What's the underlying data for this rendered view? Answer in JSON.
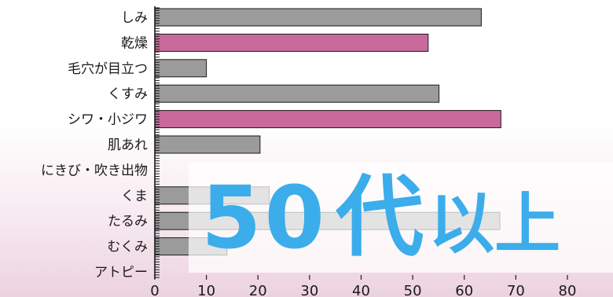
{
  "chart_data": {
    "type": "bar",
    "orientation": "horizontal",
    "categories": [
      "しみ",
      "乾燥",
      "毛穴が目立つ",
      "くすみ",
      "シワ・小ジワ",
      "肌あれ",
      "にきび・吹き出物",
      "くま",
      "たるみ",
      "むくみ",
      "アトピー"
    ],
    "values": [
      63.3,
      53.0,
      10.0,
      55.1,
      67.1,
      20.4,
      0,
      22.2,
      66.9,
      14.0,
      0
    ],
    "highlight": [
      false,
      true,
      false,
      false,
      true,
      false,
      false,
      false,
      false,
      false,
      false
    ],
    "xlim": [
      0,
      80
    ],
    "xticks": [
      "0",
      "10",
      "20",
      "30",
      "40",
      "50",
      "60",
      "70",
      "80"
    ],
    "grid": false,
    "colors": {
      "bar": "#9b9b9b",
      "highlight": "#c96a9c",
      "bar_edge": "#1a1a1a"
    }
  },
  "overlay": {
    "number": "50",
    "dai": "代",
    "ijo": "以上",
    "color": "#3badea"
  }
}
